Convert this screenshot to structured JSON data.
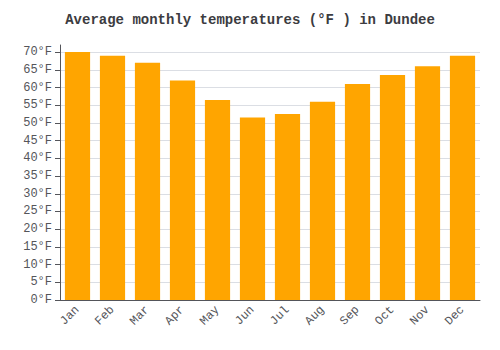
{
  "chart_data": {
    "type": "bar",
    "title": "Average monthly temperatures (°F ) in Dundee",
    "categories": [
      "Jan",
      "Feb",
      "Mar",
      "Apr",
      "May",
      "Jun",
      "Jul",
      "Aug",
      "Sep",
      "Oct",
      "Nov",
      "Dec"
    ],
    "values": [
      70,
      69,
      67,
      62,
      56.5,
      51.5,
      52.5,
      56,
      61,
      63.5,
      66,
      69
    ],
    "color": "#FFA500",
    "ylim": [
      0,
      72
    ],
    "yticks": [
      {
        "value": 0,
        "label": "0°F"
      },
      {
        "value": 5,
        "label": "5°F"
      },
      {
        "value": 10,
        "label": "10°F"
      },
      {
        "value": 15,
        "label": "15°F"
      },
      {
        "value": 20,
        "label": "20°F"
      },
      {
        "value": 25,
        "label": "25°F"
      },
      {
        "value": 30,
        "label": "30°F"
      },
      {
        "value": 35,
        "label": "35°F"
      },
      {
        "value": 40,
        "label": "40°F"
      },
      {
        "value": 45,
        "label": "45°F"
      },
      {
        "value": 50,
        "label": "50°F"
      },
      {
        "value": 55,
        "label": "55°F"
      },
      {
        "value": 60,
        "label": "60°F"
      },
      {
        "value": 65,
        "label": "65°F"
      },
      {
        "value": 70,
        "label": "70°F"
      }
    ],
    "grid": true
  }
}
